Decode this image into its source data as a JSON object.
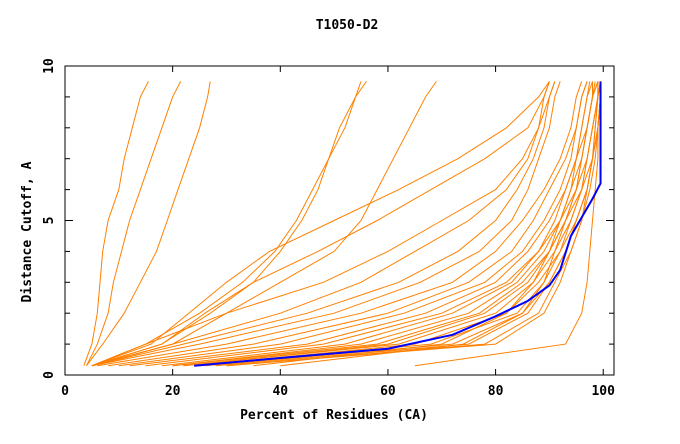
{
  "chart_data": {
    "type": "line",
    "title": "T1050-D2",
    "xlabel": "Percent of Residues (CA)",
    "ylabel": "Distance Cutoff, A",
    "xlim": [
      0,
      102
    ],
    "ylim": [
      0,
      10
    ],
    "x_ticks": [
      "0",
      "20",
      "40",
      "60",
      "80",
      "100"
    ],
    "y_ticks": [
      "0",
      "5",
      "10"
    ],
    "grid": false,
    "colors": {
      "models": "#ff8000",
      "highlight": "#0000ff"
    },
    "y_levels": [
      0.3,
      1,
      2,
      3,
      4,
      5,
      6,
      7,
      8,
      9,
      9.5
    ],
    "series": [
      {
        "x": [
          3.5,
          5,
          6,
          6.5,
          7,
          8,
          10,
          11,
          12.5,
          14,
          15.5
        ]
      },
      {
        "x": [
          4,
          6,
          8,
          9,
          10.5,
          12,
          14,
          16,
          18,
          20,
          21.5
        ]
      },
      {
        "x": [
          4,
          7,
          11,
          14,
          17,
          19,
          21,
          23,
          25,
          26.5,
          27
        ]
      },
      {
        "x": [
          5,
          15,
          25,
          33,
          39,
          43,
          46,
          49,
          52,
          54,
          55
        ]
      },
      {
        "x": [
          5,
          18,
          27,
          35,
          40,
          44,
          47,
          49,
          51,
          54,
          56
        ]
      },
      {
        "x": [
          5,
          20,
          30,
          40,
          50,
          55,
          58,
          61,
          64,
          67,
          69
        ]
      },
      {
        "x": [
          5,
          16,
          23,
          30,
          38,
          50,
          62,
          73,
          82,
          88,
          90
        ]
      },
      {
        "x": [
          5,
          18,
          26,
          35,
          47,
          58,
          68,
          78,
          86,
          89,
          90
        ]
      },
      {
        "x": [
          5,
          15,
          30,
          48,
          60,
          70,
          80,
          85,
          88,
          90,
          91
        ]
      },
      {
        "x": [
          5,
          20,
          40,
          55,
          65,
          75,
          82,
          86,
          88,
          89,
          90
        ]
      },
      {
        "x": [
          5,
          22,
          45,
          62,
          73,
          80,
          84,
          87,
          89,
          90,
          91
        ]
      },
      {
        "x": [
          5,
          25,
          50,
          66,
          77,
          83,
          86,
          88,
          90,
          91,
          92
        ]
      },
      {
        "x": [
          6,
          30,
          55,
          72,
          80,
          85,
          89,
          92,
          94,
          95,
          96
        ]
      },
      {
        "x": [
          8,
          35,
          60,
          75,
          83,
          87,
          90,
          93,
          95,
          96,
          97
        ]
      },
      {
        "x": [
          10,
          40,
          63,
          78,
          85,
          89,
          92,
          94,
          95,
          96,
          97
        ]
      },
      {
        "x": [
          12,
          45,
          67,
          80,
          86,
          90,
          93,
          95,
          96,
          97,
          98
        ]
      },
      {
        "x": [
          15,
          48,
          70,
          82,
          88,
          91,
          93,
          95,
          97,
          98,
          98.5
        ]
      },
      {
        "x": [
          18,
          52,
          72,
          83,
          88,
          92,
          94,
          96,
          97,
          98,
          99
        ]
      },
      {
        "x": [
          20,
          55,
          75,
          84,
          89,
          92,
          95,
          96,
          97,
          98,
          99
        ]
      },
      {
        "x": [
          20,
          58,
          77,
          85,
          90,
          93,
          95,
          97,
          98,
          99,
          99
        ]
      },
      {
        "x": [
          22,
          60,
          78,
          86,
          90,
          93,
          96,
          97,
          98,
          99,
          99.5
        ]
      },
      {
        "x": [
          22,
          62,
          80,
          87,
          91,
          94,
          96,
          97,
          98,
          99,
          99.5
        ]
      },
      {
        "x": [
          24,
          65,
          82,
          88,
          92,
          94,
          96,
          98,
          98.5,
          99,
          99.5
        ]
      },
      {
        "x": [
          25,
          68,
          84,
          89,
          92,
          95,
          97,
          98,
          99,
          99.5,
          99.5
        ]
      },
      {
        "x": [
          26,
          72,
          85,
          90,
          93,
          95,
          97,
          98,
          99,
          99.5,
          99.5
        ]
      },
      {
        "x": [
          28,
          75,
          86,
          90,
          93,
          95,
          97,
          98,
          99,
          99.5,
          99.5
        ]
      },
      {
        "x": [
          30,
          78,
          88,
          91,
          94,
          96,
          97.5,
          98.5,
          99,
          99.5,
          99.5
        ]
      },
      {
        "x": [
          35,
          70,
          82,
          87,
          90,
          92,
          94,
          95,
          96,
          97,
          97.5
        ]
      },
      {
        "x": [
          40,
          74,
          85,
          89,
          91,
          93,
          95,
          96,
          97,
          98,
          98
        ]
      },
      {
        "x": [
          30,
          80,
          89,
          92,
          94,
          96,
          97,
          98,
          98.5,
          99,
          99
        ]
      },
      {
        "x": [
          65,
          93,
          96,
          97,
          97.5,
          98,
          98.5,
          99,
          99,
          99.5,
          99.5
        ]
      }
    ],
    "highlight": {
      "x": [
        24,
        40,
        60,
        72,
        80,
        86,
        90,
        92,
        94,
        96,
        98,
        99.5,
        99.5
      ],
      "y": [
        0.3,
        0.55,
        0.85,
        1.3,
        1.9,
        2.4,
        2.9,
        3.4,
        4.5,
        5.1,
        5.7,
        6.2,
        9.5
      ]
    }
  }
}
